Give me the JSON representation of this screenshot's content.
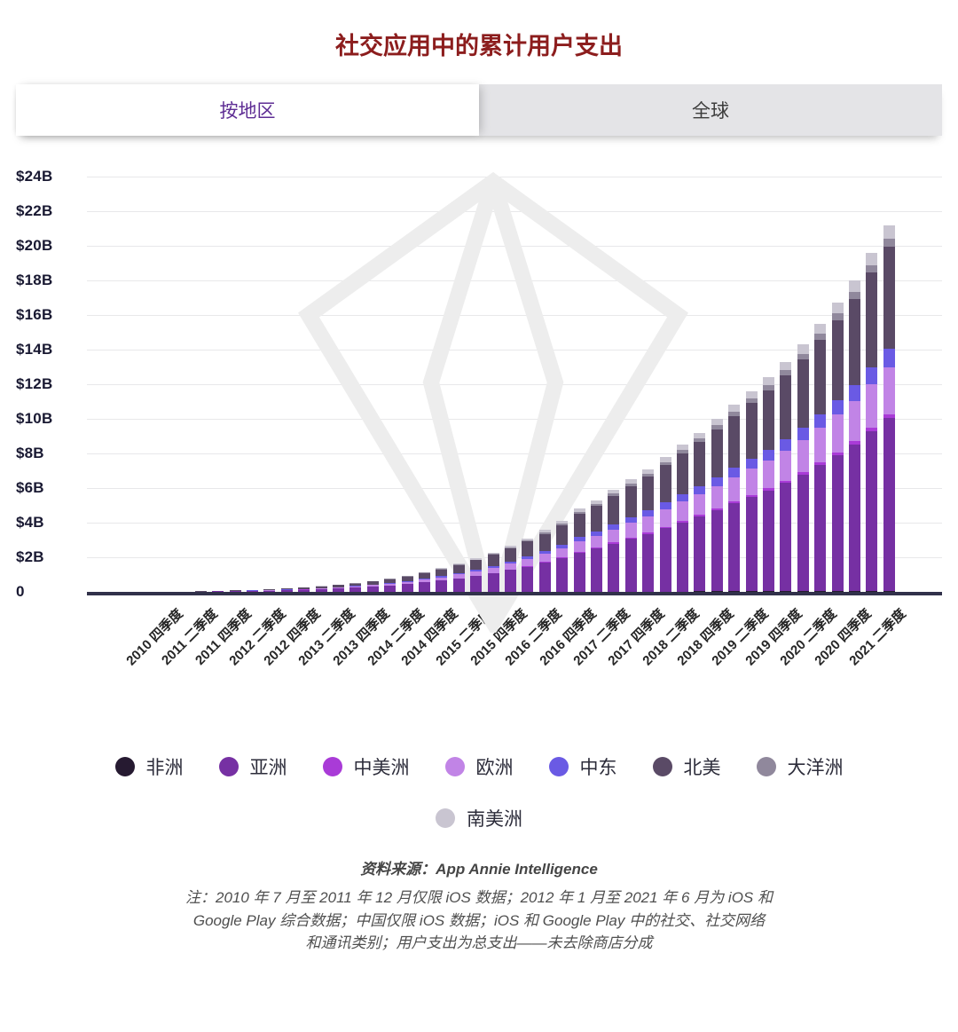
{
  "page": {
    "title": "社交应用中的累计用户支出"
  },
  "colors": {
    "title": "#8c1d1d",
    "tab_active_text": "#5e2d94",
    "baseline": "#31314a"
  },
  "tabs": [
    {
      "label": "按地区",
      "active": true
    },
    {
      "label": "全球",
      "active": false
    }
  ],
  "chart_data": {
    "type": "bar",
    "stacked": true,
    "title": "社交应用中的累计用户支出",
    "xlabel": "",
    "ylabel": "",
    "ylim": [
      0,
      24
    ],
    "y_unit": "$B",
    "grid": true,
    "legend_position": "bottom",
    "y_ticks": [
      "0",
      "$2B",
      "$4B",
      "$6B",
      "$8B",
      "$10B",
      "$12B",
      "$14B",
      "$16B",
      "$18B",
      "$20B",
      "$22B",
      "$24B"
    ],
    "x_labels": [
      "2010 四季度",
      "2011 二季度",
      "2011 四季度",
      "2012 二季度",
      "2012 四季度",
      "2013 二季度",
      "2013 四季度",
      "2014 二季度",
      "2014 四季度",
      "2015 二季度",
      "2015 四季度",
      "2016 二季度",
      "2016 四季度",
      "2017 二季度",
      "2017 四季度",
      "2018 二季度",
      "2018 四季度",
      "2019 二季度",
      "2019 四季度",
      "2020 二季度",
      "2020 四季度",
      "2021 二季度"
    ],
    "x_label_every": 2,
    "bar_count": 43,
    "bar_range": "2010年四季度 至 2021年二季度（每季度一根柱）",
    "bar_totals_billions": [
      0.01,
      0.02,
      0.04,
      0.06,
      0.09,
      0.12,
      0.16,
      0.21,
      0.27,
      0.34,
      0.42,
      0.52,
      0.64,
      0.78,
      0.95,
      1.15,
      1.38,
      1.64,
      1.94,
      2.28,
      2.66,
      3.09,
      3.57,
      4.1,
      4.8,
      5.3,
      5.9,
      6.5,
      7.1,
      7.8,
      8.5,
      9.2,
      10.0,
      10.8,
      11.6,
      12.4,
      13.3,
      14.3,
      15.5,
      16.7,
      18.0,
      19.6,
      21.2
    ],
    "series_note": "estimated cumulative totals in $B; each region segment value = share × total for that quarter",
    "series": [
      {
        "name": "非洲",
        "color": "#261a31",
        "share": 0.003
      },
      {
        "name": "亚洲",
        "color": "#7630a3",
        "share": 0.47
      },
      {
        "name": "中美洲",
        "color": "#a93bd7",
        "share": 0.01
      },
      {
        "name": "欧洲",
        "color": "#c184e6",
        "share": 0.13
      },
      {
        "name": "中东",
        "color": "#6a5ae4",
        "share": 0.05
      },
      {
        "name": "北美",
        "color": "#5a4a66",
        "share": 0.278
      },
      {
        "name": "大洋洲",
        "color": "#90889c",
        "share": 0.022
      },
      {
        "name": "南美洲",
        "color": "#c9c5d1",
        "share": 0.037
      }
    ],
    "legend_rows": [
      7,
      1
    ]
  },
  "footer": {
    "source": "资料来源：App Annie Intelligence",
    "notes": [
      "注：2010 年 7 月至 2011 年 12 月仅限 iOS 数据；2012 年 1 月至 2021 年 6 月为 iOS 和",
      "Google Play 综合数据；中国仅限 iOS 数据；iOS 和 Google Play 中的社交、社交网络",
      "和通讯类别；用户支出为总支出——未去除商店分成"
    ]
  }
}
